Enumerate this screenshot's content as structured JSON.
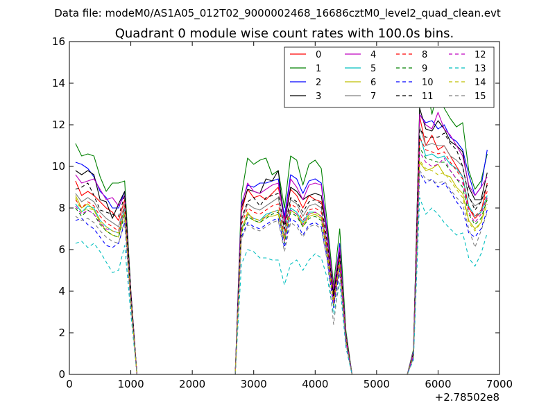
{
  "chart_data": {
    "type": "line",
    "suptitle": "Data file: modeM0/AS1A05_012T02_9000002468_16686cztM0_level2_quad_clean.evt",
    "title": "Quadrant 0 module wise count rates with 100.0s bins.",
    "xlabel": "",
    "ylabel": "",
    "x_offset_label": "+2.78502e8",
    "xlim": [
      0,
      7000
    ],
    "ylim": [
      0,
      16
    ],
    "xticks": [
      "0",
      "1000",
      "2000",
      "3000",
      "4000",
      "5000",
      "6000",
      "7000"
    ],
    "yticks": [
      "0",
      "2",
      "4",
      "6",
      "8",
      "10",
      "12",
      "14",
      "16"
    ],
    "grid": false,
    "legend_position": "top-right",
    "x": [
      100,
      200,
      300,
      400,
      500,
      600,
      700,
      800,
      900,
      1000,
      1100,
      1200,
      1300,
      1400,
      1500,
      1600,
      1700,
      1800,
      1900,
      2000,
      2100,
      2200,
      2300,
      2400,
      2500,
      2600,
      2700,
      2800,
      2900,
      3000,
      3100,
      3200,
      3300,
      3400,
      3500,
      3600,
      3700,
      3800,
      3900,
      4000,
      4100,
      4200,
      4300,
      4400,
      4500,
      4600,
      4700,
      4800,
      4900,
      5000,
      5100,
      5200,
      5300,
      5400,
      5500,
      5600,
      5700,
      5800,
      5900,
      6000,
      6100,
      6200,
      6300,
      6400,
      6500,
      6600,
      6700,
      6800
    ],
    "series": [
      {
        "name": "0",
        "color": "#ff0000",
        "dash": "solid",
        "values": [
          9.3,
          8.6,
          8.8,
          8.6,
          8.3,
          8.0,
          7.8,
          7.4,
          8.4,
          3.8,
          0,
          0,
          0,
          0,
          0,
          0,
          0,
          0,
          0,
          0,
          0,
          0,
          0,
          0,
          0,
          0,
          0,
          7.8,
          8.9,
          8.5,
          8.6,
          8.4,
          8.7,
          9.0,
          7.5,
          8.9,
          8.6,
          8.0,
          8.6,
          8.4,
          8.3,
          7.0,
          3.8,
          6.0,
          1.8,
          0,
          0,
          0,
          0,
          0,
          0,
          0,
          0,
          0,
          0,
          0.9,
          12.4,
          11.0,
          11.5,
          10.8,
          11.0,
          10.5,
          10.0,
          9.5,
          8.0,
          7.5,
          7.8,
          9.2
        ]
      },
      {
        "name": "1",
        "color": "#008000",
        "dash": "solid",
        "values": [
          11.1,
          10.5,
          10.6,
          10.5,
          9.5,
          8.8,
          9.2,
          9.2,
          9.3,
          4.0,
          0,
          0,
          0,
          0,
          0,
          0,
          0,
          0,
          0,
          0,
          0,
          0,
          0,
          0,
          0,
          0,
          0,
          8.6,
          10.4,
          10.1,
          10.3,
          10.4,
          9.6,
          9.8,
          8.0,
          10.5,
          10.3,
          9.1,
          10.1,
          10.3,
          9.9,
          7.2,
          4.3,
          7.0,
          2.1,
          0,
          0,
          0,
          0,
          0,
          0,
          0,
          0,
          0,
          0,
          1.2,
          12.8,
          14.1,
          12.5,
          13.7,
          12.8,
          12.3,
          11.9,
          12.1,
          9.8,
          8.9,
          9.3,
          10.6
        ]
      },
      {
        "name": "2",
        "color": "#0000ff",
        "dash": "solid",
        "values": [
          10.2,
          10.1,
          9.9,
          9.5,
          8.8,
          8.5,
          8.0,
          8.0,
          8.8,
          3.9,
          0,
          0,
          0,
          0,
          0,
          0,
          0,
          0,
          0,
          0,
          0,
          0,
          0,
          0,
          0,
          0,
          0,
          8.2,
          9.1,
          9.0,
          9.2,
          9.2,
          9.3,
          9.4,
          7.6,
          9.6,
          9.4,
          8.7,
          9.3,
          9.4,
          9.2,
          6.8,
          4.0,
          6.3,
          1.9,
          0,
          0,
          0,
          0,
          0,
          0,
          0,
          0,
          0,
          0,
          1.1,
          12.5,
          12.1,
          12.2,
          11.8,
          12.0,
          11.4,
          11.2,
          10.8,
          9.6,
          8.6,
          9.0,
          10.8
        ]
      },
      {
        "name": "3",
        "color": "#000000",
        "dash": "solid",
        "values": [
          9.8,
          9.6,
          9.8,
          9.6,
          8.4,
          8.3,
          7.5,
          8.2,
          8.8,
          4.0,
          0,
          0,
          0,
          0,
          0,
          0,
          0,
          0,
          0,
          0,
          0,
          0,
          0,
          0,
          0,
          0,
          0,
          8.0,
          8.9,
          8.8,
          8.7,
          9.4,
          9.3,
          9.8,
          7.2,
          9.0,
          8.8,
          8.4,
          8.6,
          8.7,
          8.6,
          6.6,
          3.9,
          6.0,
          1.9,
          0,
          0,
          0,
          0,
          0,
          0,
          0,
          0,
          0,
          0,
          1.0,
          12.8,
          11.8,
          11.7,
          12.2,
          11.8,
          11.2,
          11.0,
          10.7,
          9.0,
          8.4,
          8.4,
          9.7
        ]
      },
      {
        "name": "4",
        "color": "#bf00bf",
        "dash": "solid",
        "values": [
          9.6,
          9.2,
          9.3,
          9.4,
          8.9,
          8.4,
          8.5,
          8.1,
          8.6,
          3.9,
          0,
          0,
          0,
          0,
          0,
          0,
          0,
          0,
          0,
          0,
          0,
          0,
          0,
          0,
          0,
          0,
          0,
          8.1,
          9.2,
          8.8,
          8.7,
          8.9,
          9.1,
          9.2,
          7.3,
          9.4,
          9.0,
          8.4,
          9.1,
          9.2,
          9.1,
          6.6,
          4.1,
          6.1,
          1.9,
          0,
          0,
          0,
          0,
          0,
          0,
          0,
          0,
          0,
          0,
          1.1,
          12.5,
          12.0,
          11.8,
          12.6,
          11.8,
          11.5,
          11.0,
          10.5,
          9.1,
          8.6,
          9.0,
          9.5
        ]
      },
      {
        "name": "5",
        "color": "#00bfbf",
        "dash": "solid",
        "values": [
          8.2,
          7.8,
          8.1,
          8.0,
          7.4,
          7.1,
          6.9,
          6.8,
          8.0,
          3.6,
          0,
          0,
          0,
          0,
          0,
          0,
          0,
          0,
          0,
          0,
          0,
          0,
          0,
          0,
          0,
          0,
          0,
          7.0,
          7.7,
          7.5,
          7.4,
          7.7,
          7.8,
          7.9,
          6.6,
          8.0,
          7.8,
          7.3,
          7.8,
          7.8,
          7.6,
          5.9,
          3.5,
          5.4,
          1.7,
          0,
          0,
          0,
          0,
          0,
          0,
          0,
          0,
          0,
          0,
          0.9,
          11.5,
          10.5,
          10.6,
          10.4,
          10.5,
          10.1,
          9.9,
          9.5,
          8.1,
          7.6,
          7.8,
          8.6
        ]
      },
      {
        "name": "6",
        "color": "#bfbf00",
        "dash": "solid",
        "values": [
          8.6,
          8.0,
          8.2,
          7.9,
          7.3,
          6.9,
          6.7,
          6.6,
          7.8,
          3.5,
          0,
          0,
          0,
          0,
          0,
          0,
          0,
          0,
          0,
          0,
          0,
          0,
          0,
          0,
          0,
          0,
          0,
          6.9,
          7.8,
          7.4,
          7.3,
          7.6,
          7.6,
          7.7,
          6.4,
          7.9,
          7.7,
          7.1,
          7.6,
          7.7,
          7.5,
          5.7,
          3.4,
          5.3,
          1.6,
          0,
          0,
          0,
          0,
          0,
          0,
          0,
          0,
          0,
          0,
          0.9,
          10.2,
          9.8,
          9.9,
          10.1,
          9.6,
          9.5,
          9.0,
          8.7,
          7.4,
          7.0,
          7.3,
          8.5
        ]
      },
      {
        "name": "7",
        "color": "#808080",
        "dash": "solid",
        "values": [
          8.7,
          8.3,
          8.5,
          8.3,
          7.8,
          7.5,
          7.3,
          7.1,
          8.2,
          3.7,
          0,
          0,
          0,
          0,
          0,
          0,
          0,
          0,
          0,
          0,
          0,
          0,
          0,
          0,
          0,
          0,
          0,
          7.4,
          8.2,
          8.0,
          7.9,
          8.1,
          8.3,
          8.5,
          6.9,
          8.4,
          8.2,
          7.6,
          8.1,
          8.2,
          8.0,
          6.2,
          3.6,
          5.7,
          1.8,
          0,
          0,
          0,
          0,
          0,
          0,
          0,
          0,
          0,
          0,
          1.0,
          11.9,
          11.0,
          11.1,
          11.0,
          11.0,
          10.5,
          10.3,
          10.0,
          8.5,
          8.1,
          8.3,
          9.1
        ]
      },
      {
        "name": "8",
        "color": "#ff0000",
        "dash": "dashed",
        "values": [
          8.4,
          8.0,
          8.3,
          8.1,
          7.6,
          7.3,
          7.1,
          6.9,
          8.1,
          3.6,
          0,
          0,
          0,
          0,
          0,
          0,
          0,
          0,
          0,
          0,
          0,
          0,
          0,
          0,
          0,
          0,
          0,
          7.2,
          8.0,
          7.8,
          7.7,
          7.9,
          8.1,
          8.2,
          6.7,
          8.2,
          8.0,
          7.4,
          7.9,
          8.0,
          7.8,
          6.0,
          3.5,
          5.5,
          1.7,
          0,
          0,
          0,
          0,
          0,
          0,
          0,
          0,
          0,
          0,
          0.9,
          11.4,
          10.8,
          10.7,
          10.6,
          10.7,
          10.2,
          9.8,
          9.4,
          8.0,
          7.6,
          7.9,
          8.8
        ]
      },
      {
        "name": "9",
        "color": "#008000",
        "dash": "dashed",
        "values": [
          8.0,
          7.6,
          7.9,
          7.7,
          7.2,
          6.9,
          6.7,
          6.6,
          7.7,
          3.5,
          0,
          0,
          0,
          0,
          0,
          0,
          0,
          0,
          0,
          0,
          0,
          0,
          0,
          0,
          0,
          0,
          0,
          6.8,
          7.6,
          7.4,
          7.3,
          7.5,
          7.7,
          7.8,
          6.3,
          7.8,
          7.6,
          7.1,
          7.5,
          7.6,
          7.4,
          5.7,
          3.3,
          5.2,
          1.6,
          0,
          0,
          0,
          0,
          0,
          0,
          0,
          0,
          0,
          0,
          0.9,
          10.9,
          10.4,
          10.3,
          10.2,
          10.2,
          9.8,
          9.4,
          9.0,
          7.7,
          7.2,
          7.5,
          8.4
        ]
      },
      {
        "name": "10",
        "color": "#0000ff",
        "dash": "dashed",
        "values": [
          7.4,
          7.5,
          7.2,
          7.0,
          6.6,
          6.2,
          6.1,
          6.3,
          7.3,
          3.3,
          0,
          0,
          0,
          0,
          0,
          0,
          0,
          0,
          0,
          0,
          0,
          0,
          0,
          0,
          0,
          0,
          0,
          6.6,
          7.3,
          7.1,
          7.0,
          7.2,
          7.4,
          7.5,
          6.1,
          7.5,
          7.3,
          6.7,
          7.2,
          7.3,
          7.1,
          5.5,
          3.2,
          5.0,
          1.5,
          0,
          0,
          0,
          0,
          0,
          0,
          0,
          0,
          0,
          0,
          0.8,
          9.7,
          9.2,
          9.4,
          9.0,
          9.2,
          8.8,
          8.3,
          7.9,
          6.8,
          6.6,
          7.0,
          7.9
        ]
      },
      {
        "name": "11",
        "color": "#000000",
        "dash": "dashed",
        "values": [
          8.9,
          9.0,
          9.2,
          8.6,
          7.9,
          7.8,
          7.7,
          7.6,
          8.6,
          3.9,
          0,
          0,
          0,
          0,
          0,
          0,
          0,
          0,
          0,
          0,
          0,
          0,
          0,
          0,
          0,
          0,
          0,
          7.5,
          8.3,
          8.5,
          8.1,
          8.5,
          8.6,
          8.7,
          7.0,
          8.5,
          8.3,
          7.8,
          8.3,
          8.4,
          8.2,
          6.3,
          3.7,
          5.8,
          1.8,
          0,
          0,
          0,
          0,
          0,
          0,
          0,
          0,
          0,
          0,
          1.0,
          11.8,
          11.4,
          11.4,
          11.4,
          11.6,
          11.1,
          10.8,
          10.0,
          8.6,
          7.9,
          8.3,
          9.1
        ]
      },
      {
        "name": "12",
        "color": "#bf00bf",
        "dash": "dashed",
        "values": [
          8.1,
          7.7,
          7.9,
          7.7,
          7.3,
          7.0,
          6.9,
          6.8,
          7.8,
          3.5,
          0,
          0,
          0,
          0,
          0,
          0,
          0,
          0,
          0,
          0,
          0,
          0,
          0,
          0,
          0,
          0,
          0,
          6.9,
          7.7,
          7.5,
          7.4,
          7.6,
          7.8,
          7.9,
          6.4,
          7.9,
          7.7,
          7.2,
          7.7,
          7.8,
          7.6,
          5.8,
          3.4,
          5.3,
          1.6,
          0,
          0,
          0,
          0,
          0,
          0,
          0,
          0,
          0,
          0,
          0.9,
          10.7,
          10.2,
          10.0,
          10.1,
          10.4,
          9.8,
          9.4,
          9.2,
          7.8,
          7.3,
          7.7,
          8.5
        ]
      },
      {
        "name": "13",
        "color": "#00bfbf",
        "dash": "dashed",
        "values": [
          6.3,
          6.4,
          6.1,
          6.3,
          5.9,
          5.4,
          4.9,
          5.0,
          6.2,
          2.9,
          0,
          0,
          0,
          0,
          0,
          0,
          0,
          0,
          0,
          0,
          0,
          0,
          0,
          0,
          0,
          0,
          0,
          5.3,
          6.0,
          5.9,
          5.6,
          5.6,
          5.5,
          5.5,
          4.3,
          5.3,
          5.5,
          5.0,
          5.5,
          5.8,
          5.6,
          4.6,
          2.9,
          4.4,
          1.3,
          0,
          0,
          0,
          0,
          0,
          0,
          0,
          0,
          0,
          0,
          0.7,
          8.5,
          7.7,
          8.0,
          7.7,
          7.3,
          7.0,
          6.7,
          6.8,
          5.6,
          5.2,
          5.8,
          6.8
        ]
      },
      {
        "name": "14",
        "color": "#bfbf00",
        "dash": "dashed",
        "values": [
          8.5,
          7.8,
          8.0,
          7.9,
          7.4,
          7.1,
          6.9,
          6.8,
          7.8,
          3.5,
          0,
          0,
          0,
          0,
          0,
          0,
          0,
          0,
          0,
          0,
          0,
          0,
          0,
          0,
          0,
          0,
          0,
          6.9,
          7.7,
          7.5,
          7.4,
          7.6,
          7.8,
          7.9,
          6.5,
          7.9,
          7.7,
          7.2,
          7.7,
          7.8,
          7.6,
          5.8,
          3.4,
          5.3,
          1.6,
          0,
          0,
          0,
          0,
          0,
          0,
          0,
          0,
          0,
          0,
          0.9,
          10.3,
          9.9,
          9.8,
          9.6,
          9.7,
          9.3,
          8.9,
          8.5,
          7.3,
          6.9,
          7.3,
          8.2
        ]
      },
      {
        "name": "15",
        "color": "#808080",
        "dash": "dashed",
        "values": [
          7.6,
          7.4,
          7.5,
          7.3,
          6.9,
          6.6,
          6.4,
          6.3,
          7.4,
          3.3,
          0,
          0,
          0,
          0,
          0,
          0,
          0,
          0,
          0,
          0,
          0,
          0,
          0,
          0,
          0,
          0,
          0,
          6.5,
          7.2,
          7.0,
          6.9,
          7.1,
          7.3,
          7.4,
          5.9,
          7.3,
          7.1,
          6.6,
          7.1,
          7.2,
          7.0,
          5.4,
          2.4,
          4.9,
          1.5,
          0,
          0,
          0,
          0,
          0,
          0,
          0,
          0,
          0,
          0,
          0.8,
          9.8,
          9.4,
          9.3,
          9.2,
          9.3,
          8.9,
          8.5,
          8.2,
          7.0,
          6.1,
          6.9,
          7.8
        ]
      }
    ]
  }
}
